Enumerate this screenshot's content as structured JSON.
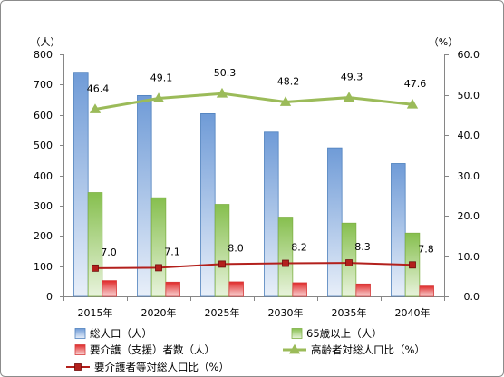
{
  "chart_data": {
    "type": "bar",
    "categories": [
      "2015年",
      "2020年",
      "2025年",
      "2030年",
      "2035年",
      "2040年"
    ],
    "series": [
      {
        "name": "総人口（人）",
        "type": "bar",
        "axis": "left",
        "values": [
          741,
          664,
          604,
          543,
          491,
          439
        ],
        "color": "#4f81bd"
      },
      {
        "name": "65歳以上（人）",
        "type": "bar",
        "axis": "left",
        "values": [
          343,
          326,
          304,
          262,
          242,
          209
        ],
        "color": "#7fb046"
      },
      {
        "name": "要介護（支援）者数（人）",
        "type": "bar",
        "axis": "left",
        "values": [
          52,
          47,
          48,
          45,
          41,
          34
        ],
        "color": "#d63c3c"
      },
      {
        "name": "高齢者対総人口比（%）",
        "type": "line",
        "axis": "right",
        "marker": "triangle",
        "values": [
          46.4,
          49.1,
          50.3,
          48.2,
          49.3,
          47.6
        ],
        "data_labels": [
          "46.4",
          "49.1",
          "50.3",
          "48.2",
          "49.3",
          "47.6"
        ],
        "color": "#9bbb59"
      },
      {
        "name": "要介護者等対総人口比（%）",
        "type": "line",
        "axis": "right",
        "marker": "square",
        "values": [
          7.0,
          7.1,
          8.0,
          8.2,
          8.3,
          7.8
        ],
        "data_labels": [
          "7.0",
          "7.1",
          "8.0",
          "8.2",
          "8.3",
          "7.8"
        ],
        "color": "#b3201c"
      }
    ],
    "y_left": {
      "unit": "（人）",
      "range": [
        0,
        800
      ],
      "ticks": [
        "0",
        "100",
        "200",
        "300",
        "400",
        "500",
        "600",
        "700",
        "800"
      ]
    },
    "y_right": {
      "unit": "（%）",
      "range": [
        0,
        60
      ],
      "ticks": [
        "0.0",
        "10.0",
        "20.0",
        "30.0",
        "40.0",
        "50.0",
        "60.0"
      ]
    },
    "grid": false,
    "legend_position": "bottom"
  }
}
